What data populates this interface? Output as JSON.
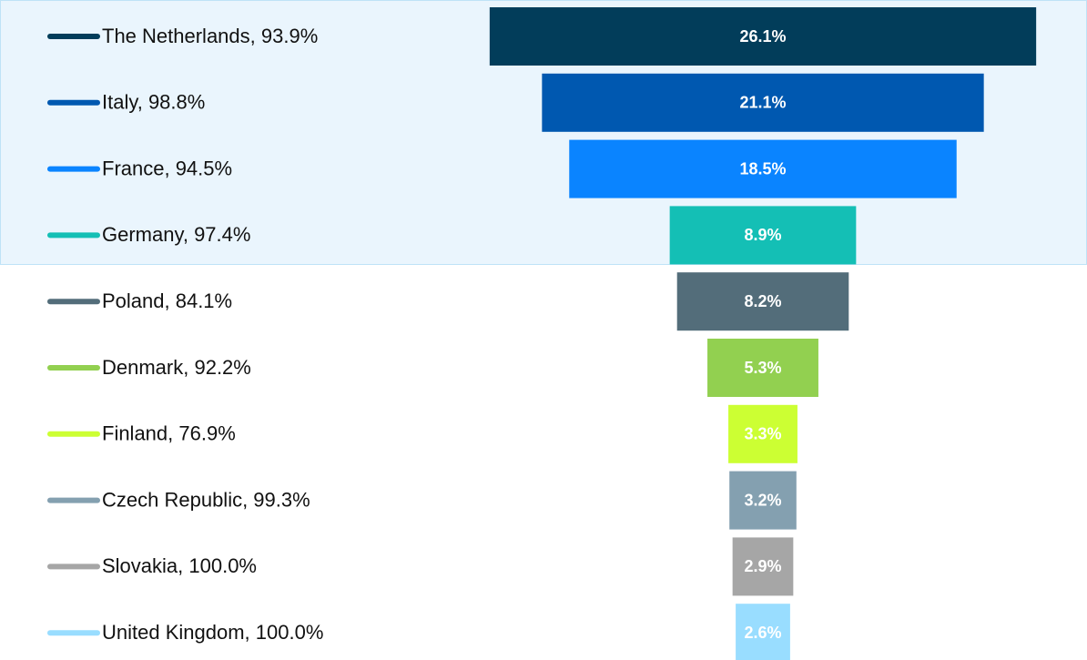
{
  "chart_data": {
    "type": "funnel",
    "categories": [
      "The Netherlands, 93.9%",
      "Italy, 98.8%",
      "France, 94.5%",
      "Germany, 97.4%",
      "Poland, 84.1%",
      "Denmark, 92.2%",
      "Finland, 76.9%",
      "Czech Republic, 99.3%",
      "Slovakia, 100.0%",
      "United Kingdom, 100.0%"
    ],
    "values": [
      26.1,
      21.1,
      18.5,
      8.9,
      8.2,
      5.3,
      3.3,
      3.2,
      2.9,
      2.6
    ],
    "value_labels": [
      "26.1%",
      "21.1%",
      "18.5%",
      "8.9%",
      "8.2%",
      "5.3%",
      "3.3%",
      "3.2%",
      "2.9%",
      "2.6%"
    ],
    "colors": [
      "#023d5a",
      "#0058b0",
      "#0a84ff",
      "#14bfb5",
      "#536d7a",
      "#92d050",
      "#ccff33",
      "#84a0b0",
      "#a6a6a6",
      "#99ddff"
    ]
  }
}
